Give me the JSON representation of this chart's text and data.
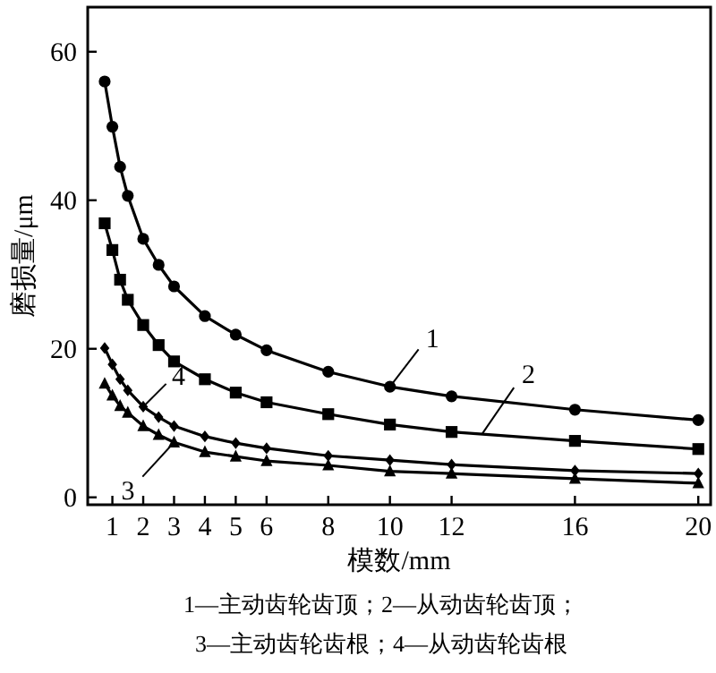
{
  "chart_data": {
    "type": "line",
    "xlabel": "模数/mm",
    "ylabel": "磨损量/μm",
    "xlim": [
      0.2,
      20.4
    ],
    "ylim": [
      -1,
      66
    ],
    "xticks": [
      1,
      2,
      3,
      4,
      5,
      6,
      8,
      10,
      12,
      16,
      20
    ],
    "yticks": [
      0,
      20,
      40,
      60
    ],
    "grid": false,
    "line_style": "solid",
    "x": [
      0.75,
      1,
      1.25,
      1.5,
      2,
      2.5,
      3,
      4,
      5,
      6,
      8,
      10,
      12,
      16,
      20
    ],
    "series": [
      {
        "color": "#000000",
        "marker": "circle",
        "values": [
          56,
          49.9,
          44.5,
          40.6,
          34.8,
          31.3,
          28.4,
          24.4,
          21.9,
          19.8,
          16.9,
          14.9,
          13.6,
          11.8,
          10.4
        ]
      },
      {
        "color": "#000000",
        "marker": "square",
        "values": [
          36.9,
          33.3,
          29.3,
          26.6,
          23.2,
          20.5,
          18.3,
          15.9,
          14.1,
          12.8,
          11.2,
          9.8,
          8.8,
          7.6,
          6.5
        ]
      },
      {
        "color": "#000000",
        "marker": "triangle",
        "values": [
          15.3,
          13.7,
          12.3,
          11.4,
          9.6,
          8.4,
          7.4,
          6.1,
          5.5,
          4.9,
          4.3,
          3.5,
          3.2,
          2.5,
          1.9
        ]
      },
      {
        "color": "#000000",
        "marker": "diamond",
        "values": [
          20.1,
          17.9,
          15.9,
          14.4,
          12.2,
          10.8,
          9.6,
          8.2,
          7.3,
          6.6,
          5.6,
          5.0,
          4.4,
          3.6,
          3.2
        ]
      }
    ],
    "annotations": [
      {
        "text": "1",
        "x": 10,
        "y": 14.9
      },
      {
        "text": "2",
        "x": 13,
        "y": 8.6
      },
      {
        "text": "3",
        "x": 3,
        "y": 7.4
      },
      {
        "text": "4",
        "x": 2,
        "y": 12.2
      },
      "1—主动齿轮齿顶；2—从动齿轮齿顶；",
      "3—主动齿轮齿根；4—从动齿轮齿根"
    ]
  }
}
